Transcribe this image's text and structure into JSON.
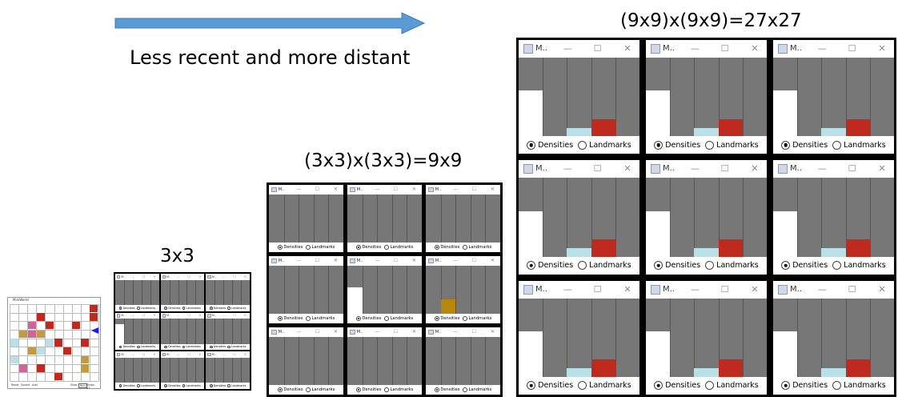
{
  "arrow": {
    "label": "Less recent and more distant",
    "color": "#5b9bd5"
  },
  "captions": {
    "small": "3x3",
    "medium": "(3x3)x(3x3)=9x9",
    "large": "(9x9)x(9x9)=27x27"
  },
  "window": {
    "title": "M..",
    "minimize": "—",
    "maximize": "☐",
    "close": "✕",
    "option_densities": "Densities",
    "option_landmarks": "Landmarks",
    "icon": "java-app-icon"
  },
  "colors": {
    "plot_bg": "#777777",
    "bar_white": "#ffffff",
    "bar_light_blue": "#b8e0e6",
    "bar_red": "#c0291d",
    "bar_mustard": "#b8860b",
    "grid_pink": "#cc6699",
    "grid_tan": "#c49a3c"
  },
  "board": {
    "title": "MiniWorld",
    "controls": [
      "Reset",
      "Speed",
      "Add"
    ],
    "status": [
      "Step",
      "Run",
      "Steps 27"
    ]
  },
  "panels": {
    "small": [
      {
        "bars": []
      },
      {
        "bars": []
      },
      {
        "bars": []
      },
      {
        "bars": [
          {
            "slot": 0,
            "level": 0.8,
            "color": "#ffffff"
          }
        ]
      },
      {
        "bars": []
      },
      {
        "bars": []
      },
      {
        "bars": []
      },
      {
        "bars": []
      },
      {
        "bars": []
      }
    ],
    "medium": [
      {
        "bars": []
      },
      {
        "bars": []
      },
      {
        "bars": []
      },
      {
        "bars": []
      },
      {
        "bars": [
          {
            "slot": 0,
            "level": 0.55,
            "color": "#ffffff"
          }
        ]
      },
      {
        "bars": [
          {
            "slot": 1,
            "level": 0.3,
            "color": "#b8860b"
          }
        ]
      },
      {
        "bars": []
      },
      {
        "bars": []
      },
      {
        "bars": []
      }
    ],
    "large_bars": [
      {
        "slot": 0,
        "level": 0.58,
        "color": "#ffffff"
      },
      {
        "slot": 2,
        "level": 0.11,
        "color": "#b8e0e6"
      },
      {
        "slot": 3,
        "level": 0.22,
        "color": "#c0291d"
      }
    ]
  }
}
